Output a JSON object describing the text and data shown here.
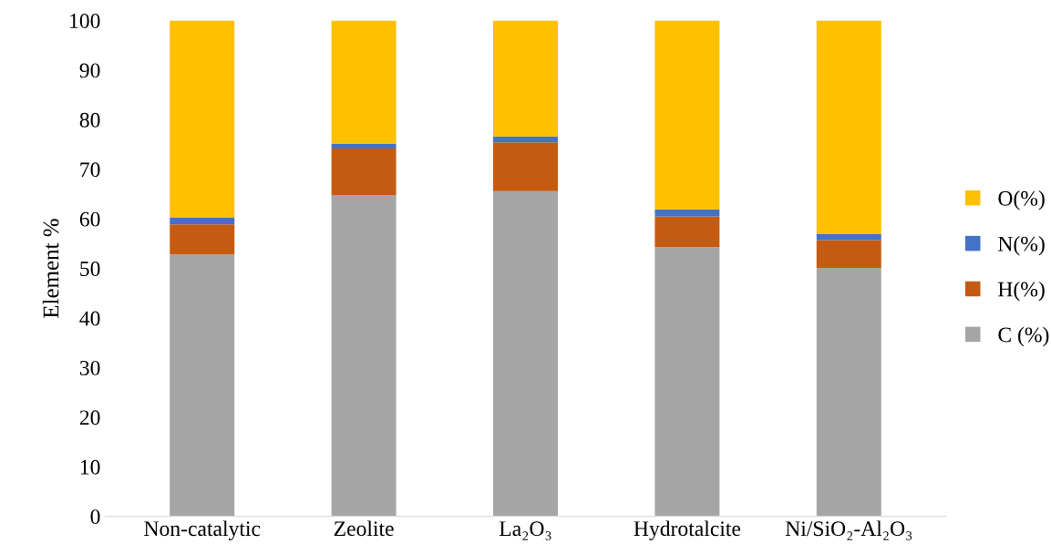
{
  "chart_data": {
    "type": "bar",
    "stacked": true,
    "ylabel": "Element %",
    "categories": [
      "Non-catalytic",
      "Zeolite",
      "La₂O₃",
      "Hydrotalcite",
      "Ni/SiO₂-Al₂O₃"
    ],
    "series": [
      {
        "name": "C (%)",
        "color": "#a5a5a5",
        "values": [
          52.8,
          64.8,
          65.6,
          54.3,
          50.1
        ]
      },
      {
        "name": "H(%)",
        "color": "#c55a11",
        "values": [
          6.1,
          9.4,
          9.8,
          6.2,
          5.6
        ]
      },
      {
        "name": "N(%)",
        "color": "#4472c4",
        "values": [
          1.3,
          1.0,
          1.2,
          1.4,
          1.2
        ]
      },
      {
        "name": "O(%)",
        "color": "#ffc000",
        "values": [
          39.8,
          24.8,
          23.4,
          38.1,
          43.1
        ]
      }
    ],
    "ylim": [
      0,
      100
    ],
    "yticks": [
      0,
      10,
      20,
      30,
      40,
      50,
      60,
      70,
      80,
      90,
      100
    ],
    "grid": false,
    "legend": "right"
  }
}
